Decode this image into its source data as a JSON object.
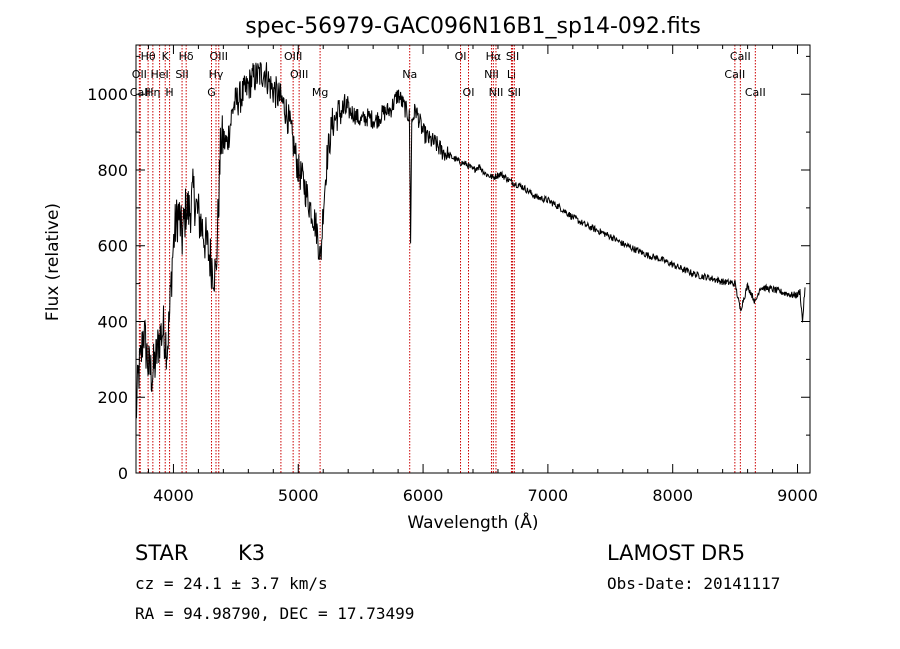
{
  "chart_data": {
    "type": "line",
    "title": "spec-56979-GAC096N16B1_sp14-092.fits",
    "xlabel": "Wavelength (Å)",
    "ylabel": "Flux (relative)",
    "xlim": [
      3700,
      9100
    ],
    "ylim": [
      0,
      1130
    ],
    "xticks": [
      4000,
      5000,
      6000,
      7000,
      8000,
      9000
    ],
    "yticks": [
      0,
      200,
      400,
      600,
      800,
      1000
    ],
    "grid": false,
    "line_color": "#000000",
    "marker_color": "#cc0000",
    "spectrum_anchors": {
      "x": [
        3700,
        3720,
        3740,
        3760,
        3780,
        3800,
        3830,
        3860,
        3890,
        3920,
        3950,
        3970,
        3990,
        4010,
        4040,
        4070,
        4100,
        4130,
        4160,
        4190,
        4220,
        4260,
        4300,
        4340,
        4380,
        4430,
        4480,
        4530,
        4580,
        4630,
        4680,
        4730,
        4780,
        4830,
        4870,
        4900,
        4930,
        4960,
        5000,
        5040,
        5080,
        5120,
        5150,
        5180,
        5200,
        5230,
        5270,
        5320,
        5380,
        5440,
        5500,
        5560,
        5620,
        5680,
        5740,
        5800,
        5860,
        5890,
        5900,
        5910,
        5940,
        6000,
        6050,
        6100,
        6150,
        6200,
        6250,
        6300,
        6350,
        6400,
        6450,
        6500,
        6560,
        6620,
        6700,
        6800,
        6900,
        7000,
        7100,
        7200,
        7300,
        7400,
        7500,
        7600,
        7700,
        7800,
        7900,
        8000,
        8100,
        8200,
        8300,
        8400,
        8500,
        8542,
        8600,
        8662,
        8700,
        8800,
        8900,
        8950,
        9000,
        9020,
        9040,
        9060
      ],
      "y": [
        150,
        260,
        300,
        380,
        330,
        280,
        260,
        300,
        360,
        380,
        330,
        420,
        560,
        640,
        690,
        620,
        700,
        690,
        740,
        690,
        660,
        610,
        560,
        520,
        880,
        870,
        970,
        990,
        1010,
        1040,
        1050,
        1060,
        1020,
        1000,
        980,
        960,
        920,
        870,
        800,
        770,
        720,
        680,
        640,
        560,
        700,
        830,
        920,
        950,
        960,
        950,
        930,
        940,
        930,
        950,
        960,
        1000,
        960,
        940,
        620,
        930,
        960,
        900,
        880,
        870,
        850,
        840,
        830,
        820,
        815,
        800,
        810,
        790,
        780,
        790,
        770,
        755,
        730,
        720,
        700,
        675,
        655,
        640,
        625,
        605,
        590,
        575,
        565,
        550,
        535,
        522,
        515,
        505,
        500,
        430,
        495,
        450,
        490,
        485,
        475,
        470,
        470,
        480,
        400,
        490
      ]
    },
    "line_markers": [
      {
        "label": "Hθ",
        "x": 3797,
        "row": 0
      },
      {
        "label": "OII",
        "x": 3727,
        "row": 1
      },
      {
        "label": "CaII",
        "x": 3734,
        "row": 2
      },
      {
        "label": "Hη",
        "x": 3835,
        "row": 2
      },
      {
        "label": "K",
        "x": 3934,
        "row": 0
      },
      {
        "label": "HeI",
        "x": 3889,
        "row": 1
      },
      {
        "label": "SII",
        "x": 4069,
        "row": 1
      },
      {
        "label": "H",
        "x": 3969,
        "row": 2
      },
      {
        "label": "Hδ",
        "x": 4102,
        "row": 0
      },
      {
        "label": "OIII",
        "x": 4363,
        "row": 0
      },
      {
        "label": "Hγ",
        "x": 4341,
        "row": 1
      },
      {
        "label": "G",
        "x": 4305,
        "row": 2
      },
      {
        "label": "OIII",
        "x": 4959,
        "row": 0
      },
      {
        "label": "OIII",
        "x": 5007,
        "row": 1
      },
      {
        "label": "Mg",
        "x": 5175,
        "row": 2
      },
      {
        "label": "Na",
        "x": 5893,
        "row": 1
      },
      {
        "label": "OI",
        "x": 6300,
        "row": 0
      },
      {
        "label": "OI",
        "x": 6364,
        "row": 2
      },
      {
        "label": "Hα",
        "x": 6563,
        "row": 0
      },
      {
        "label": "NII",
        "x": 6548,
        "row": 1
      },
      {
        "label": "NII",
        "x": 6584,
        "row": 2
      },
      {
        "label": "SII",
        "x": 6717,
        "row": 0
      },
      {
        "label": "Li",
        "x": 6708,
        "row": 1
      },
      {
        "label": "SII",
        "x": 6731,
        "row": 2
      },
      {
        "label": "CaII",
        "x": 8542,
        "row": 0
      },
      {
        "label": "CaII",
        "x": 8498,
        "row": 1
      },
      {
        "label": "CaII",
        "x": 8662,
        "row": 2
      },
      {
        "label": "",
        "x": 4861,
        "row": 0
      }
    ]
  },
  "info": {
    "object_class": "STAR",
    "subclass": "K3",
    "survey": "LAMOST DR5",
    "cz": "cz = 24.1 ± 3.7 km/s",
    "obs_date": "Obs-Date: 20141117",
    "coords": "RA =  94.98790, DEC =  17.73499"
  }
}
